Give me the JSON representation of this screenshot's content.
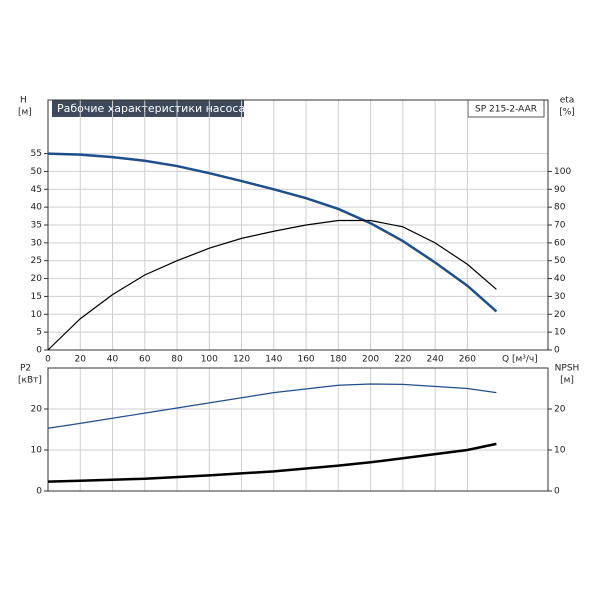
{
  "chart_data": [
    {
      "type": "line",
      "title": "Рабочие характеристики насоса",
      "model": "SP 215-2-AAR",
      "ylabel": "H",
      "yunit": "[м]",
      "y2label": "eta",
      "y2unit": "[%]",
      "xlabel": "Q [м³/ч]",
      "x": [
        0,
        20,
        40,
        60,
        80,
        100,
        120,
        140,
        160,
        180,
        200,
        220,
        240,
        260,
        278
      ],
      "xlim": [
        0,
        310
      ],
      "xticks": [
        0,
        20,
        40,
        60,
        80,
        100,
        120,
        140,
        160,
        180,
        200,
        220,
        240,
        260
      ],
      "ylim": [
        0,
        70
      ],
      "yticks": [
        0,
        5,
        10,
        15,
        20,
        25,
        30,
        35,
        40,
        45,
        50,
        55
      ],
      "y2lim": [
        0,
        140
      ],
      "y2ticks": [
        0,
        10,
        20,
        30,
        40,
        50,
        60,
        70,
        80,
        90,
        100
      ],
      "grid": true,
      "series": [
        {
          "name": "H",
          "color": "#1f4e8c",
          "width": 2.5,
          "values": [
            55,
            54.7,
            54,
            53,
            51.5,
            49.5,
            47.3,
            45,
            42.5,
            39.5,
            35.5,
            30.5,
            24.5,
            18,
            10.8
          ]
        },
        {
          "name": "eta",
          "color": "#000000",
          "width": 1.2,
          "axis": "y2",
          "values": [
            0,
            17.5,
            31,
            42,
            50,
            57,
            62.5,
            66.5,
            70,
            72.5,
            72.5,
            69,
            60,
            48,
            34
          ]
        }
      ]
    },
    {
      "type": "line",
      "ylabel": "P2",
      "yunit": "[кВт]",
      "y2label": "NPSH",
      "y2unit": "[м]",
      "x": [
        0,
        20,
        60,
        100,
        140,
        180,
        200,
        220,
        260,
        278
      ],
      "ylim": [
        0,
        30
      ],
      "yticks": [
        0,
        10,
        20
      ],
      "y2lim": [
        0,
        30
      ],
      "y2ticks": [
        0,
        10,
        20
      ],
      "grid": true,
      "series": [
        {
          "name": "P2",
          "color": "#1f4e8c",
          "width": 1.2,
          "values": [
            15.3,
            16.5,
            19,
            21.5,
            24,
            25.8,
            26.1,
            26,
            25,
            24
          ]
        },
        {
          "name": "NPSH",
          "color": "#000000",
          "width": 2.5,
          "axis": "y2",
          "values": [
            2.3,
            2.5,
            3,
            3.8,
            4.8,
            6.2,
            7,
            8,
            10,
            11.5
          ]
        }
      ]
    }
  ]
}
